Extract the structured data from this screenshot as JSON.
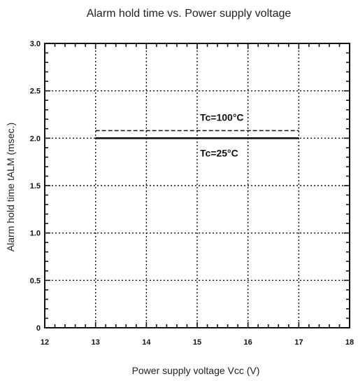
{
  "chart_data": {
    "type": "line",
    "title": "Alarm hold time vs. Power supply voltage",
    "xlabel": "Power supply voltage  Vcc (V)",
    "ylabel": "Alarm hold time   tALM (msec.)",
    "xlim": [
      12,
      18
    ],
    "ylim": [
      0,
      3.0
    ],
    "x_ticks": [
      "12",
      "13",
      "14",
      "15",
      "16",
      "17",
      "18"
    ],
    "y_ticks": [
      "0",
      "0.5",
      "1.0",
      "1.5",
      "2.0",
      "2.5",
      "3.0"
    ],
    "grid": true,
    "series": [
      {
        "name": "Tc=100°C",
        "style": "dashed",
        "x": [
          13,
          17
        ],
        "y": [
          2.08,
          2.08
        ]
      },
      {
        "name": "Tc=25°C",
        "style": "solid",
        "x": [
          13,
          17
        ],
        "y": [
          2.0,
          2.0
        ]
      }
    ]
  }
}
